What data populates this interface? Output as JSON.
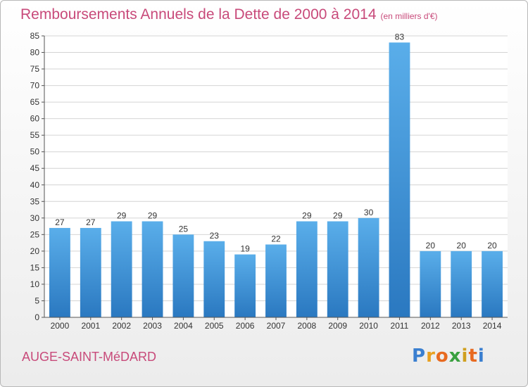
{
  "chart_data": {
    "type": "bar",
    "title": "Remboursements Annuels de la Dette de 2000 à 2014",
    "subtitle": "(en milliers d'€)",
    "categories": [
      "2000",
      "2001",
      "2002",
      "2003",
      "2004",
      "2005",
      "2006",
      "2007",
      "2008",
      "2009",
      "2010",
      "2011",
      "2012",
      "2013",
      "2014"
    ],
    "values": [
      27,
      27,
      29,
      29,
      25,
      23,
      19,
      22,
      29,
      29,
      30,
      83,
      20,
      20,
      20
    ],
    "ylim": [
      0,
      85
    ],
    "yticks": [
      0,
      5,
      10,
      15,
      20,
      25,
      30,
      35,
      40,
      45,
      50,
      55,
      60,
      65,
      70,
      75,
      80,
      85
    ],
    "xlabel": "",
    "ylabel": "",
    "grid": true
  },
  "commune": "AUGE-SAINT-MéDARD",
  "logo": {
    "letters": [
      "P",
      "r",
      "o",
      "x",
      "i",
      "t",
      "i"
    ],
    "colors": [
      "#3a7fd0",
      "#e8a020",
      "#e86a20",
      "#3aa040",
      "#d0a020",
      "#e86a20",
      "#3a7fd0"
    ]
  },
  "colors": {
    "bar": "#4a9ee0",
    "bar_dark": "#2e7fc6",
    "title": "#c84a7a",
    "grid": "#d4d4d4"
  }
}
